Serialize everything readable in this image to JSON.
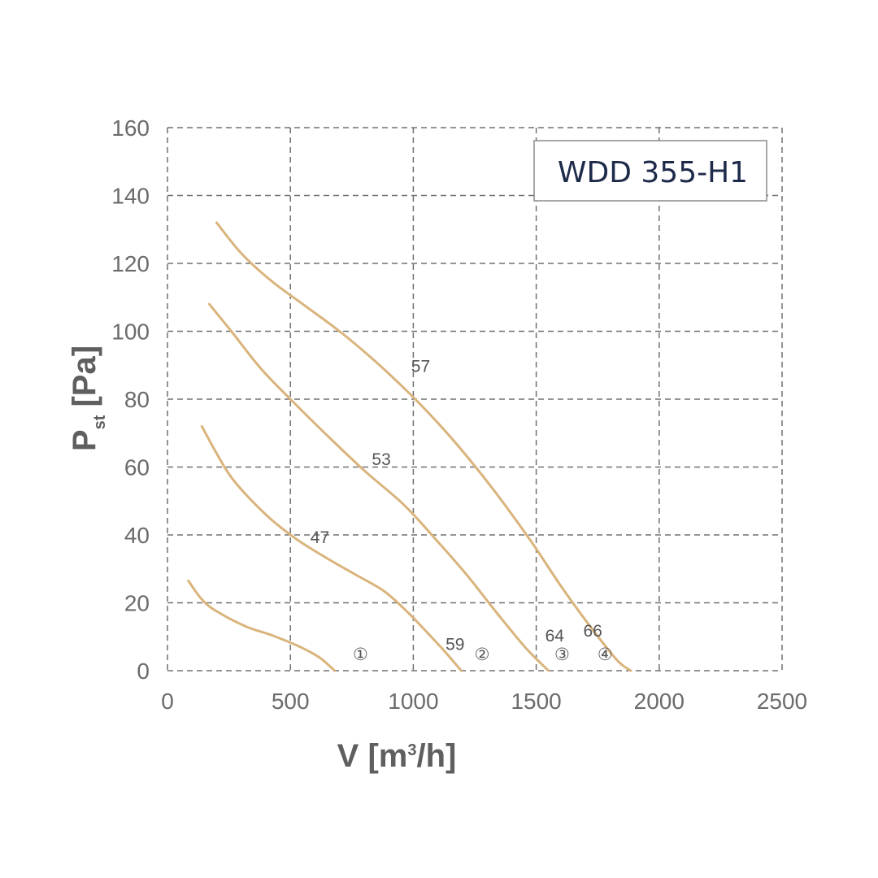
{
  "chart_data": {
    "type": "line",
    "model": "WDD 355-H1",
    "xlabel": {
      "prefix": "V [m",
      "sup": "3",
      "suffix": "/h]"
    },
    "ylabel": {
      "main": "P",
      "sub": "st",
      "unit": "[Pa]"
    },
    "xlim": [
      0,
      2500
    ],
    "ylim": [
      0,
      160
    ],
    "xticks": [
      "0",
      "500",
      "1000",
      "1500",
      "2000",
      "2500"
    ],
    "yticks": [
      "0",
      "20",
      "40",
      "60",
      "80",
      "100",
      "120",
      "140",
      "160"
    ],
    "grid": true,
    "line_color": "#d9b47c",
    "series": [
      {
        "speed_marker": "①",
        "points": [
          [
            85,
            26.5
          ],
          [
            140,
            21
          ],
          [
            200,
            17.5
          ],
          [
            320,
            13
          ],
          [
            430,
            10.3
          ],
          [
            540,
            7
          ],
          [
            620,
            3.8
          ],
          [
            680,
            0
          ]
        ]
      },
      {
        "speed_marker": "②",
        "points": [
          [
            140,
            72
          ],
          [
            200,
            64
          ],
          [
            270,
            56
          ],
          [
            400,
            46
          ],
          [
            520,
            39
          ],
          [
            640,
            33.5
          ],
          [
            760,
            28.5
          ],
          [
            880,
            23.5
          ],
          [
            980,
            17
          ],
          [
            1060,
            11
          ],
          [
            1130,
            5.5
          ],
          [
            1195,
            0
          ]
        ]
      },
      {
        "speed_marker": "③",
        "points": [
          [
            170,
            108
          ],
          [
            260,
            100
          ],
          [
            380,
            89
          ],
          [
            500,
            80
          ],
          [
            640,
            70
          ],
          [
            800,
            59
          ],
          [
            960,
            49
          ],
          [
            1100,
            38
          ],
          [
            1220,
            28
          ],
          [
            1340,
            17
          ],
          [
            1460,
            6.5
          ],
          [
            1550,
            0
          ]
        ]
      },
      {
        "speed_marker": "④",
        "points": [
          [
            200,
            132
          ],
          [
            300,
            123
          ],
          [
            420,
            115
          ],
          [
            560,
            107.5
          ],
          [
            700,
            100
          ],
          [
            840,
            91.5
          ],
          [
            980,
            82
          ],
          [
            1100,
            73
          ],
          [
            1220,
            63
          ],
          [
            1340,
            52
          ],
          [
            1480,
            38
          ],
          [
            1600,
            25
          ],
          [
            1720,
            13
          ],
          [
            1830,
            3
          ],
          [
            1885,
            0
          ]
        ]
      }
    ],
    "annotations": [
      {
        "text": "57",
        "x": 1030,
        "y": 90
      },
      {
        "text": "53",
        "x": 870,
        "y": 62.5
      },
      {
        "text": "47",
        "x": 620,
        "y": 39.5
      },
      {
        "text": "59",
        "x": 1170,
        "y": 8
      },
      {
        "text": "64",
        "x": 1575,
        "y": 10.5
      },
      {
        "text": "66",
        "x": 1730,
        "y": 12
      },
      {
        "text": "①",
        "x": 785,
        "y": 5
      },
      {
        "text": "②",
        "x": 1280,
        "y": 5
      },
      {
        "text": "③",
        "x": 1605,
        "y": 5
      },
      {
        "text": "④",
        "x": 1780,
        "y": 5
      }
    ]
  }
}
